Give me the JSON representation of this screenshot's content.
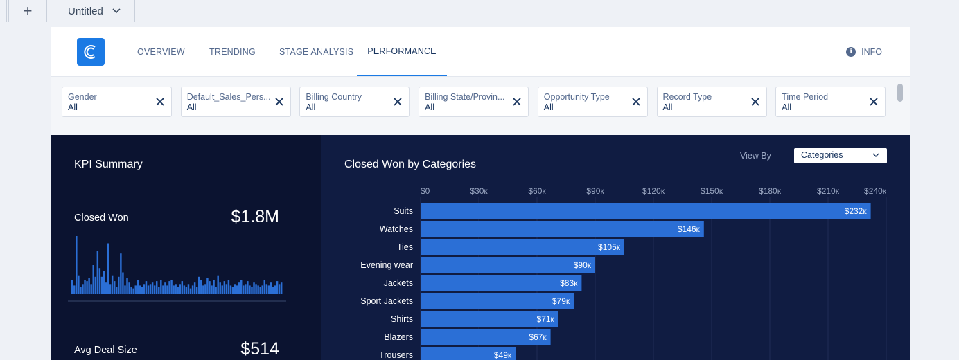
{
  "tabs": {
    "add_label": "+",
    "current_tab": "Untitled"
  },
  "header": {
    "nav": [
      "OVERVIEW",
      "TRENDING",
      "STAGE ANALYSIS",
      "PERFORMANCE"
    ],
    "active_tab": "PERFORMANCE",
    "info_label": "INFO",
    "accent_color": "#1b7ae4"
  },
  "filters": [
    {
      "label": "Gender",
      "value": "All"
    },
    {
      "label": "Default_Sales_Pers...",
      "value": "All"
    },
    {
      "label": "Billing Country",
      "value": "All"
    },
    {
      "label": "Billing State/Provin...",
      "value": "All"
    },
    {
      "label": "Opportunity Type",
      "value": "All"
    },
    {
      "label": "Record Type",
      "value": "All"
    },
    {
      "label": "Time Period",
      "value": "All"
    }
  ],
  "kpi": {
    "title": "KPI Summary",
    "closed_won_label": "Closed Won",
    "closed_won_value": "$1.8M",
    "avg_deal_label": "Avg Deal Size",
    "avg_deal_value": "$514"
  },
  "chart_panel": {
    "view_by_label": "View By",
    "view_by_value": "Categories"
  },
  "chart_data": {
    "type": "bar",
    "orientation": "horizontal",
    "title": "Closed Won by Categories",
    "categories": [
      "Suits",
      "Watches",
      "Ties",
      "Evening wear",
      "Jackets",
      "Sport Jackets",
      "Shirts",
      "Blazers",
      "Trousers"
    ],
    "values": [
      232,
      146,
      105,
      90,
      83,
      79,
      71,
      67,
      49
    ],
    "value_labels": [
      "$232к",
      "$146к",
      "$105к",
      "$90к",
      "$83к",
      "$79к",
      "$71к",
      "$67к",
      "$49к"
    ],
    "ticks": [
      0,
      30,
      60,
      90,
      120,
      150,
      180,
      210,
      240
    ],
    "tick_labels": [
      "$0",
      "$30к",
      "$60к",
      "$90к",
      "$120к",
      "$150к",
      "$180к",
      "$210к",
      "$240к"
    ],
    "xlim": [
      0,
      240
    ],
    "grid": true,
    "bar_color": "#2b6fd6"
  },
  "sparkline_data": {
    "type": "bar",
    "values": [
      20,
      12,
      80,
      26,
      10,
      14,
      20,
      18,
      22,
      14,
      40,
      24,
      60,
      36,
      24,
      32,
      16,
      70,
      14,
      26,
      18,
      10,
      24,
      56,
      30,
      12,
      22,
      16,
      10,
      8,
      12,
      20,
      12,
      10,
      14,
      18,
      12,
      14,
      16,
      12,
      18,
      10,
      20,
      12,
      16,
      12,
      18,
      20,
      12,
      14,
      10,
      14,
      18,
      12,
      10,
      14,
      8,
      12,
      16,
      10,
      24,
      20,
      12,
      14,
      22,
      18,
      12,
      20,
      10,
      26,
      16,
      12,
      18,
      14,
      20,
      12,
      10,
      14,
      12,
      16,
      20,
      12,
      14,
      18,
      12,
      10,
      16,
      14,
      12,
      10,
      12,
      20,
      14,
      12,
      16,
      10,
      12,
      18,
      14,
      16
    ]
  }
}
